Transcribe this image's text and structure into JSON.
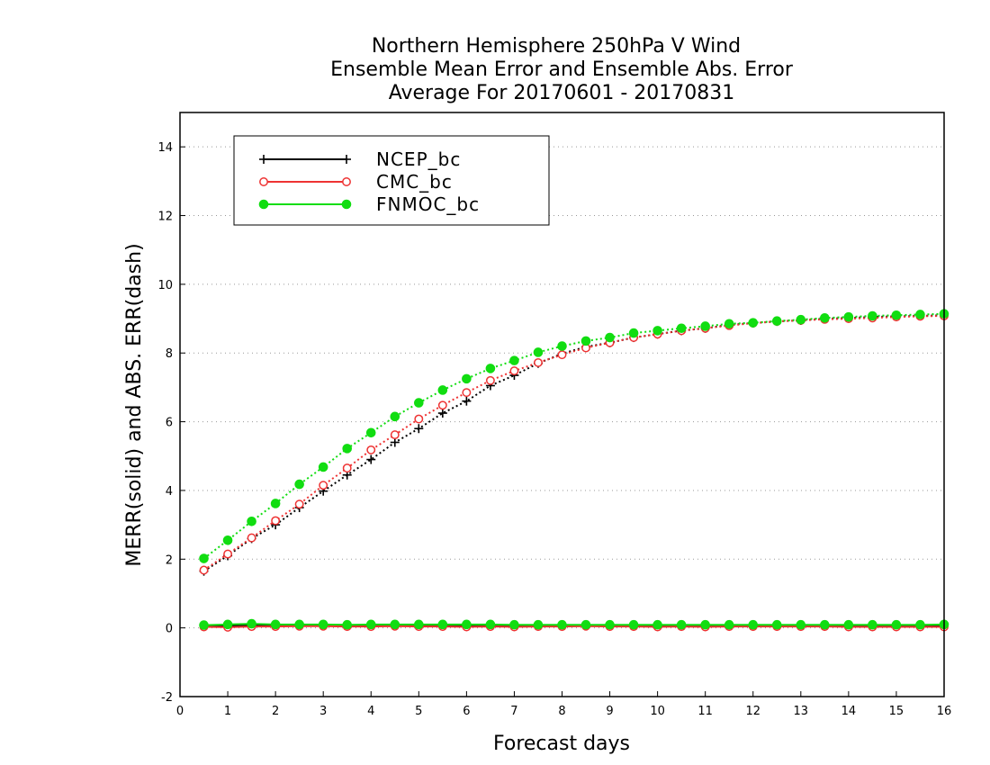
{
  "chart_data": {
    "type": "line",
    "title_lines": [
      "Northern Hemisphere 250hPa V Wind",
      "Ensemble Mean Error and Ensemble Abs. Error",
      "Average For 20170601 - 20170831"
    ],
    "xlabel": "Forecast days",
    "ylabel": "MERR(solid) and ABS. ERR(dash)",
    "xlim": [
      0,
      16
    ],
    "ylim": [
      -2,
      15
    ],
    "xticks": [
      0,
      1,
      2,
      3,
      4,
      5,
      6,
      7,
      8,
      9,
      10,
      11,
      12,
      13,
      14,
      15,
      16
    ],
    "xtick_labels": [
      "0",
      "1",
      "2",
      "3",
      "4",
      "5",
      "6",
      "7",
      "8",
      "9",
      "10",
      "11",
      "12",
      "13",
      "14",
      "15",
      "16"
    ],
    "yticks": [
      -2,
      0,
      2,
      4,
      6,
      8,
      10,
      12,
      14
    ],
    "ytick_labels": [
      "-2",
      "0",
      "2",
      "4",
      "6",
      "8",
      "10",
      "12",
      "14"
    ],
    "grid": "horizontal dotted",
    "legend_position": "top-left",
    "x": [
      0.5,
      1,
      1.5,
      2,
      2.5,
      3,
      3.5,
      4,
      4.5,
      5,
      5.5,
      6,
      6.5,
      7,
      7.5,
      8,
      8.5,
      9,
      9.5,
      10,
      10.5,
      11,
      11.5,
      12,
      12.5,
      13,
      13.5,
      14,
      14.5,
      15,
      15.5,
      16
    ],
    "series": [
      {
        "name": "NCEP_bc",
        "color": "#000000",
        "marker": "plus",
        "merr": [
          0.05,
          0.06,
          0.07,
          0.08,
          0.07,
          0.07,
          0.06,
          0.07,
          0.07,
          0.07,
          0.07,
          0.06,
          0.07,
          0.06,
          0.06,
          0.06,
          0.06,
          0.06,
          0.06,
          0.06,
          0.06,
          0.06,
          0.07,
          0.06,
          0.06,
          0.06,
          0.06,
          0.06,
          0.06,
          0.06,
          0.06,
          0.06
        ],
        "abs_err": [
          1.65,
          2.1,
          2.6,
          3.0,
          3.5,
          3.98,
          4.45,
          4.9,
          5.4,
          5.8,
          6.25,
          6.6,
          7.05,
          7.35,
          7.7,
          7.98,
          8.18,
          8.3,
          8.45,
          8.55,
          8.65,
          8.72,
          8.82,
          8.87,
          8.92,
          8.95,
          9.0,
          9.02,
          9.05,
          9.07,
          9.08,
          9.1
        ]
      },
      {
        "name": "CMC_bc",
        "color": "#ee3333",
        "marker": "open-circle",
        "merr": [
          0.03,
          0.02,
          0.04,
          0.04,
          0.05,
          0.05,
          0.04,
          0.04,
          0.05,
          0.04,
          0.04,
          0.03,
          0.04,
          0.03,
          0.04,
          0.04,
          0.05,
          0.04,
          0.04,
          0.03,
          0.04,
          0.03,
          0.04,
          0.04,
          0.04,
          0.04,
          0.04,
          0.03,
          0.03,
          0.03,
          0.03,
          0.03
        ],
        "abs_err": [
          1.68,
          2.15,
          2.62,
          3.12,
          3.6,
          4.15,
          4.65,
          5.18,
          5.62,
          6.08,
          6.48,
          6.85,
          7.2,
          7.48,
          7.72,
          7.95,
          8.15,
          8.3,
          8.45,
          8.55,
          8.65,
          8.72,
          8.8,
          8.87,
          8.92,
          8.95,
          8.98,
          9.0,
          9.02,
          9.05,
          9.07,
          9.08
        ]
      },
      {
        "name": "FNMOC_bc",
        "color": "#11dd11",
        "marker": "filled-circle",
        "merr": [
          0.08,
          0.1,
          0.12,
          0.1,
          0.1,
          0.1,
          0.09,
          0.1,
          0.1,
          0.1,
          0.1,
          0.1,
          0.1,
          0.09,
          0.09,
          0.09,
          0.09,
          0.09,
          0.09,
          0.09,
          0.09,
          0.09,
          0.09,
          0.09,
          0.09,
          0.09,
          0.09,
          0.09,
          0.09,
          0.09,
          0.09,
          0.1
        ],
        "abs_err": [
          2.02,
          2.55,
          3.1,
          3.62,
          4.18,
          4.68,
          5.22,
          5.68,
          6.15,
          6.55,
          6.92,
          7.25,
          7.55,
          7.78,
          8.02,
          8.2,
          8.35,
          8.45,
          8.58,
          8.65,
          8.72,
          8.78,
          8.85,
          8.88,
          8.93,
          8.97,
          9.02,
          9.05,
          9.08,
          9.1,
          9.12,
          9.14
        ]
      }
    ]
  }
}
